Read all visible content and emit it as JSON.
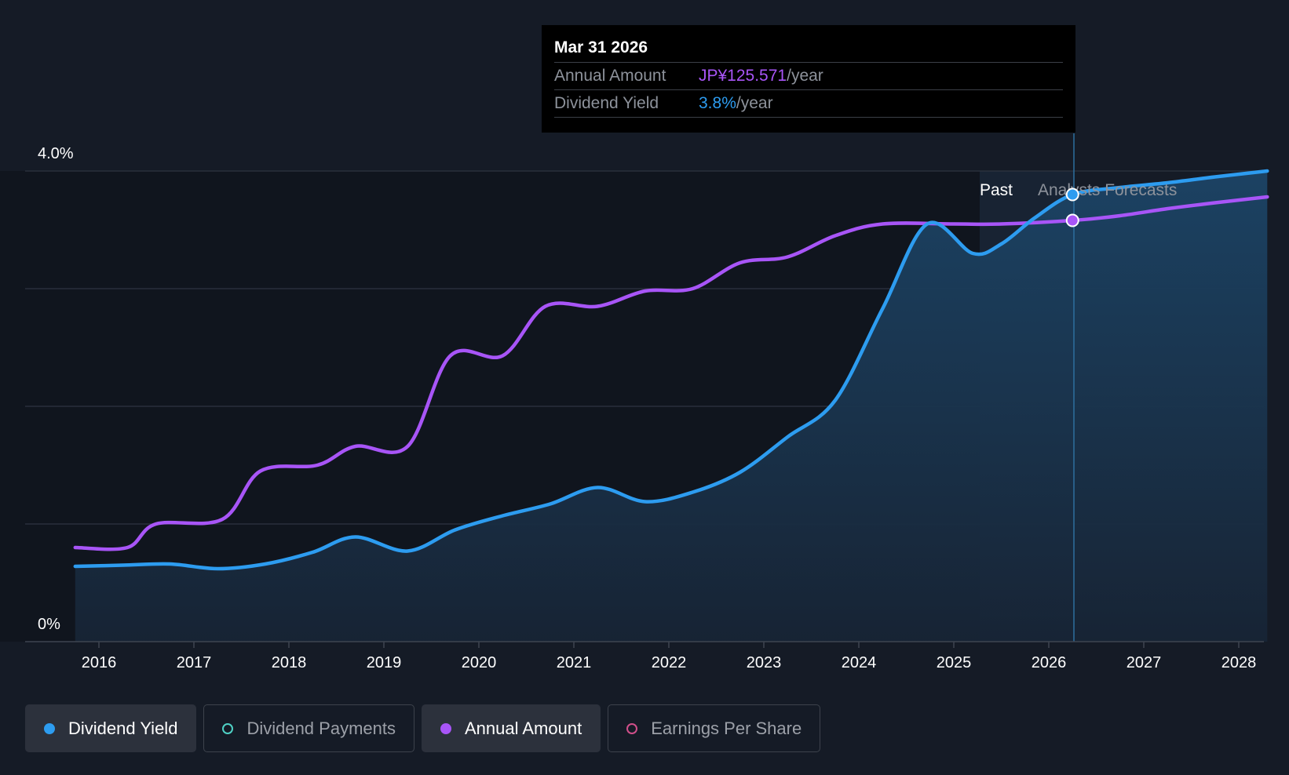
{
  "chart_data": {
    "type": "line",
    "y_axis_labels": [
      "4.0%",
      "0%"
    ],
    "ylim": [
      0,
      4.0
    ],
    "x_ticks": [
      "2016",
      "2017",
      "2018",
      "2019",
      "2020",
      "2021",
      "2022",
      "2023",
      "2024",
      "2025",
      "2026",
      "2027",
      "2028"
    ],
    "regions": {
      "past_label": "Past",
      "forecast_label": "Analysts Forecasts"
    },
    "series": [
      {
        "name": "Dividend Yield",
        "color": "#2d9cf0",
        "unit": "%",
        "x": [
          2015.75,
          2016.25,
          2016.75,
          2017.25,
          2017.75,
          2018.25,
          2018.7,
          2019.25,
          2019.75,
          2020.25,
          2020.75,
          2021.25,
          2021.75,
          2022.25,
          2022.75,
          2023.25,
          2023.75,
          2024.25,
          2024.72,
          2025.2,
          2025.5,
          2025.85,
          2026.25,
          2026.75,
          2027.25,
          2027.75,
          2028.3
        ],
        "values": [
          0.64,
          0.65,
          0.66,
          0.62,
          0.66,
          0.76,
          0.89,
          0.77,
          0.95,
          1.07,
          1.17,
          1.31,
          1.19,
          1.27,
          1.44,
          1.74,
          2.05,
          2.83,
          3.55,
          3.3,
          3.38,
          3.6,
          3.8,
          3.86,
          3.9,
          3.95,
          4.0
        ]
      },
      {
        "name": "Annual Amount",
        "color": "#a855f7",
        "x": [
          2015.75,
          2016.3,
          2016.6,
          2017.3,
          2017.7,
          2018.3,
          2018.7,
          2019.25,
          2019.7,
          2020.25,
          2020.7,
          2021.25,
          2021.75,
          2022.25,
          2022.75,
          2023.25,
          2023.75,
          2024.25,
          2025.0,
          2025.5,
          2026.25,
          2026.75,
          2027.25,
          2027.75,
          2028.3
        ],
        "values": [
          0.8,
          0.8,
          1.0,
          1.04,
          1.45,
          1.5,
          1.66,
          1.66,
          2.43,
          2.43,
          2.85,
          2.85,
          2.98,
          3.0,
          3.22,
          3.27,
          3.45,
          3.55,
          3.55,
          3.55,
          3.58,
          3.62,
          3.68,
          3.73,
          3.78
        ]
      }
    ]
  },
  "tooltip": {
    "date": "Mar 31 2026",
    "annual_amount_label": "Annual Amount",
    "annual_amount_value": "JP¥125.571",
    "dividend_yield_label": "Dividend Yield",
    "dividend_yield_value": "3.8%",
    "per_year": "/year"
  },
  "legend": [
    {
      "label": "Dividend Yield",
      "color": "#2d9cf0",
      "active": true
    },
    {
      "label": "Dividend Payments",
      "color": "#4fd1c5",
      "active": false
    },
    {
      "label": "Annual Amount",
      "color": "#a855f7",
      "active": true
    },
    {
      "label": "Earnings Per Share",
      "color": "#d04f8a",
      "active": false
    }
  ]
}
